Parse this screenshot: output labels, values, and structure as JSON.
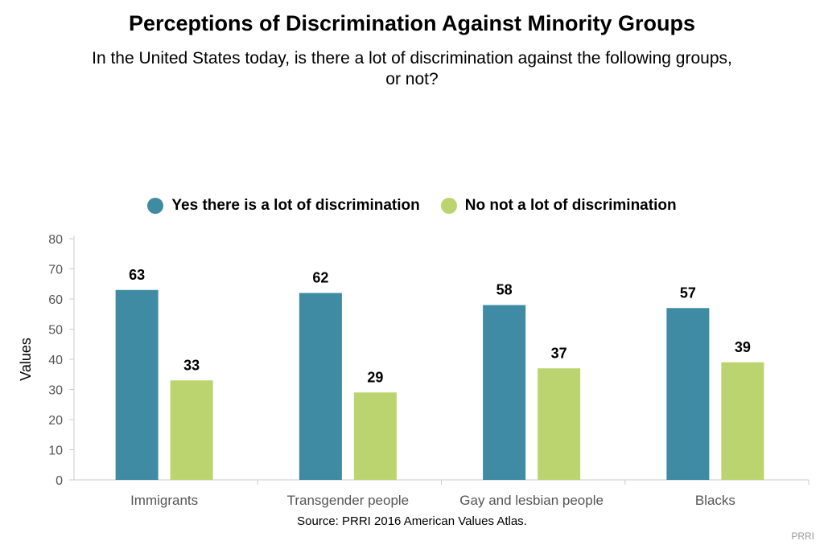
{
  "colors": {
    "series1": "#3e8ba3",
    "series2": "#bcd46f",
    "axis": "#cccccc",
    "tick_text": "#555555"
  },
  "chart_data": {
    "type": "bar",
    "title": "Perceptions of Discrimination Against Minority Groups",
    "subtitle": "In the United States today, is there a lot of discrimination against the following groups, or not?",
    "ylabel": "Values",
    "xlabel": "",
    "ylim": [
      0,
      80
    ],
    "yticks": [
      0,
      10,
      20,
      30,
      40,
      50,
      60,
      70,
      80
    ],
    "categories": [
      "Immigrants",
      "Transgender people",
      "Gay and lesbian people",
      "Blacks"
    ],
    "series": [
      {
        "name": "Yes there is a lot of discrimination",
        "values": [
          63,
          62,
          58,
          57
        ],
        "labels": [
          "63",
          "62",
          "58",
          "57"
        ]
      },
      {
        "name": "No not a lot of discrimination",
        "values": [
          33,
          29,
          37,
          39
        ],
        "labels": [
          "33",
          "29",
          "37",
          "39"
        ]
      }
    ],
    "legend_position": "top-center",
    "grid": false
  },
  "source": "Source: PRRI 2016 American Values Atlas.",
  "credit": "PRRI"
}
